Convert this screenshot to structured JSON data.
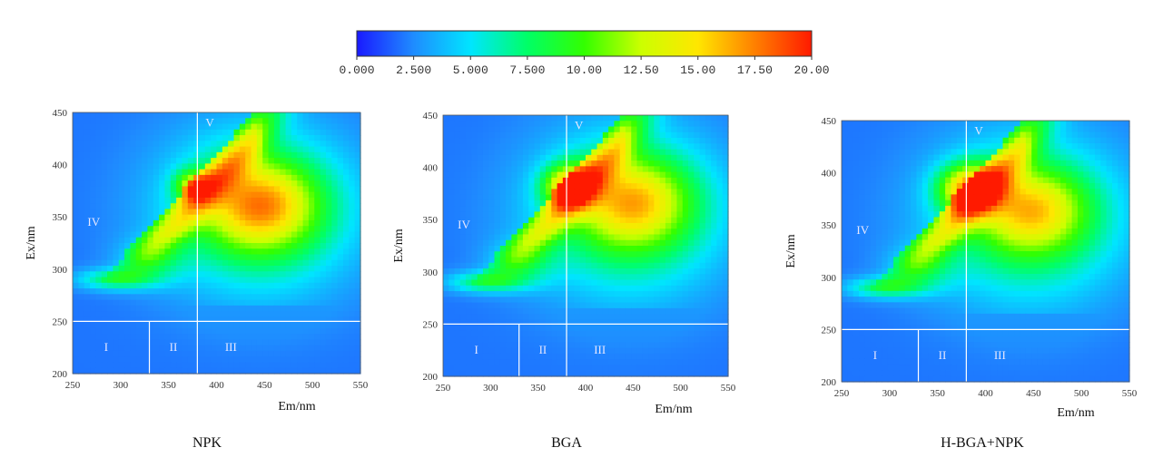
{
  "chart_data": {
    "type": "heatmap",
    "colorbar": {
      "min": 0,
      "max": 20,
      "ticks": [
        "0.000",
        "2.500",
        "5.000",
        "7.500",
        "10.00",
        "12.50",
        "15.00",
        "17.50",
        "20.00"
      ],
      "colors": [
        "#1a1aff",
        "#1f8cff",
        "#00e5ff",
        "#00ff66",
        "#33ff00",
        "#ccff00",
        "#ffe600",
        "#ff8000",
        "#ff1a00"
      ]
    },
    "xlabel": "Em/nm",
    "ylabel": "Ex/nm",
    "xlim": [
      250,
      550
    ],
    "ylim": [
      200,
      450
    ],
    "xticks": [
      "250",
      "300",
      "350",
      "400",
      "450",
      "500",
      "550"
    ],
    "yticks": [
      "200",
      "250",
      "300",
      "350",
      "400",
      "450"
    ],
    "region_boundaries": {
      "ex": 250,
      "em_1": 330,
      "em_2": 380
    },
    "regions": [
      {
        "label": "I",
        "em": 285,
        "ex": 225
      },
      {
        "label": "II",
        "em": 355,
        "ex": 225
      },
      {
        "label": "III",
        "em": 415,
        "ex": 225
      },
      {
        "label": "IV",
        "em": 272,
        "ex": 345
      },
      {
        "label": "V",
        "em": 393,
        "ex": 440
      }
    ],
    "panels": [
      {
        "title": "NPK",
        "peaks": [
          {
            "em": 445,
            "ex": 362,
            "intensity": 17.5,
            "sem": 42,
            "sex": 30
          },
          {
            "em": 375,
            "ex": 380,
            "intensity": 15.0,
            "sem": 13,
            "sex": 10
          }
        ]
      },
      {
        "title": "BGA",
        "peaks": [
          {
            "em": 450,
            "ex": 368,
            "intensity": 16.5,
            "sem": 42,
            "sex": 30
          },
          {
            "em": 382,
            "ex": 382,
            "intensity": 18.5,
            "sem": 18,
            "sex": 14
          }
        ]
      },
      {
        "title": "H-BGA+NPK",
        "peaks": [
          {
            "em": 448,
            "ex": 365,
            "intensity": 16.0,
            "sem": 40,
            "sex": 28
          },
          {
            "em": 383,
            "ex": 385,
            "intensity": 19.5,
            "sem": 22,
            "sex": 16
          }
        ]
      }
    ]
  }
}
